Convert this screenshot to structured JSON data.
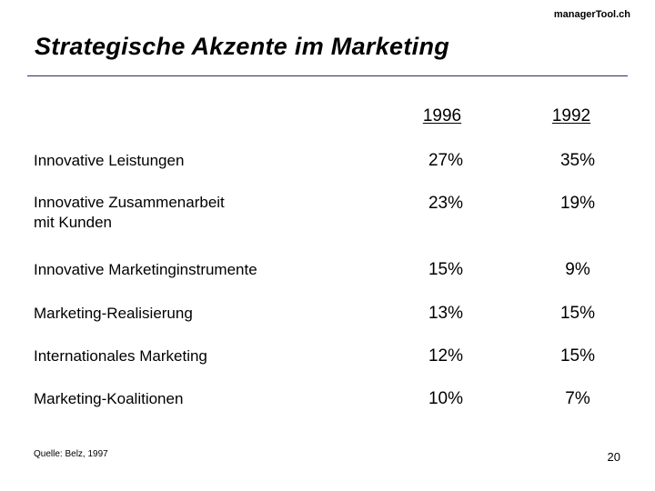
{
  "brand": "managerTool.ch",
  "title": "Strategische Akzente im Marketing",
  "table": {
    "headers": [
      "1996",
      "1992"
    ],
    "rows": [
      {
        "label": "Innovative Leistungen",
        "v1996": "27%",
        "v1992": "35%"
      },
      {
        "label": "Innovative Zusammenarbeit\nmit Kunden",
        "v1996": "23%",
        "v1992": "19%"
      },
      {
        "label": "Innovative Marketinginstrumente",
        "v1996": "15%",
        "v1992": "9%"
      },
      {
        "label": "Marketing-Realisierung",
        "v1996": "13%",
        "v1992": "15%"
      },
      {
        "label": "Internationales Marketing",
        "v1996": "12%",
        "v1992": "15%"
      },
      {
        "label": "Marketing-Koalitionen",
        "v1996": "10%",
        "v1992": "7%"
      }
    ]
  },
  "source": "Quelle: Belz, 1997",
  "page_number": "20",
  "colors": {
    "rule": "#2c2a68"
  }
}
